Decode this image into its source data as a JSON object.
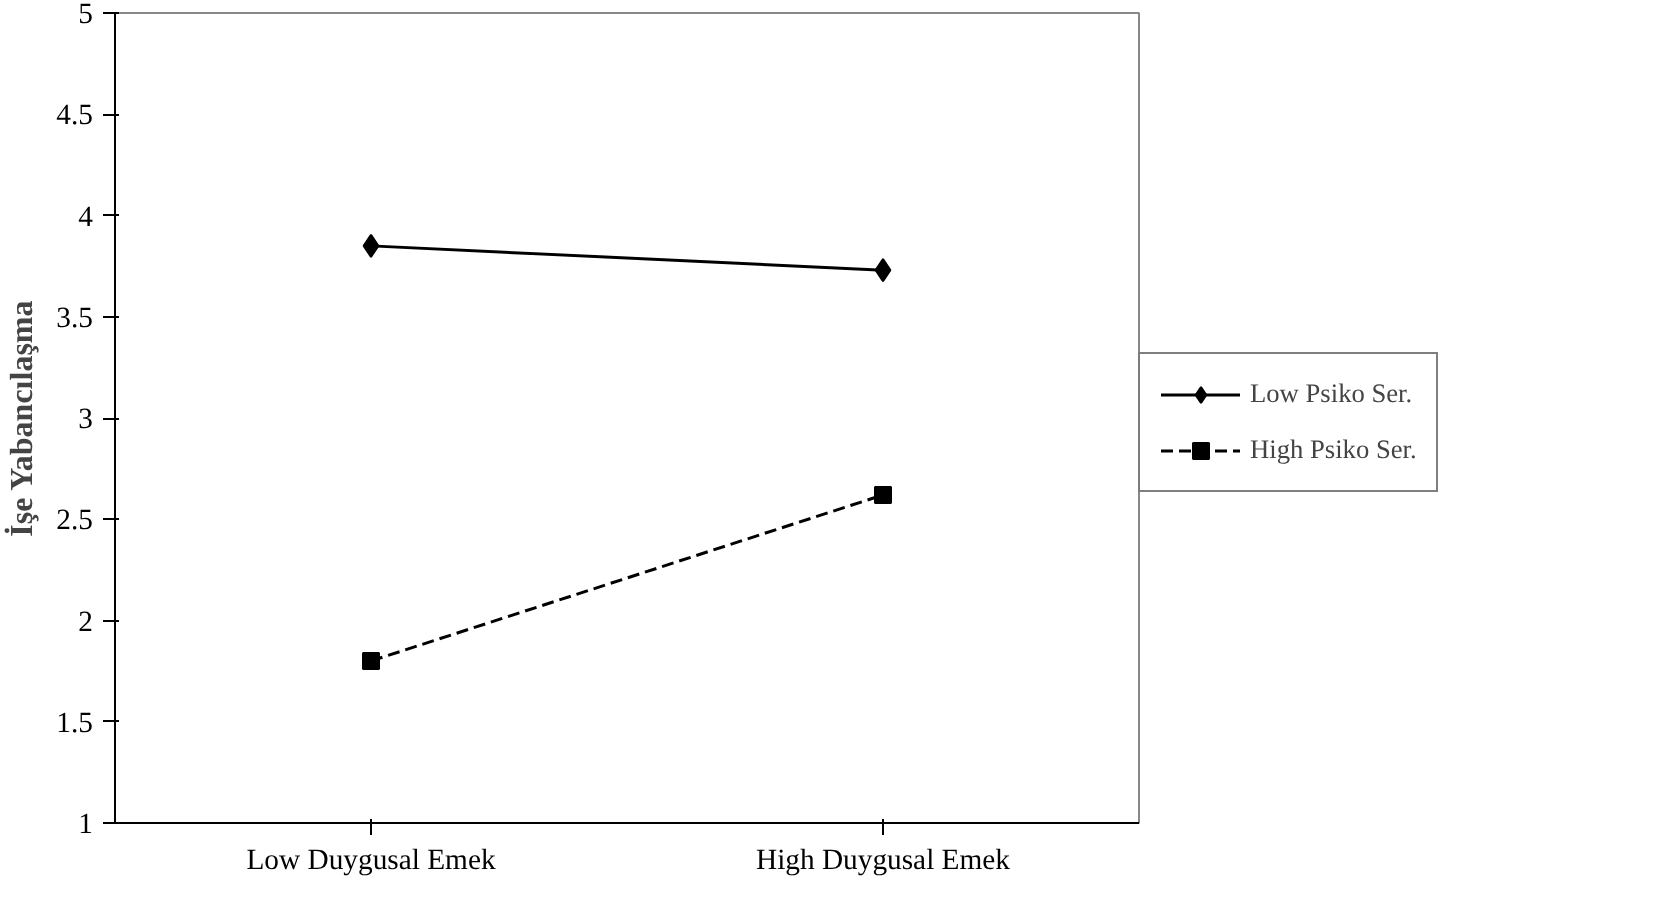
{
  "chart_data": {
    "type": "line",
    "ylabel": "İşe Yabancılaşma",
    "categories": [
      "Low Duygusal Emek",
      "High Duygusal Emek"
    ],
    "series": [
      {
        "name": "Low Psiko Ser.",
        "color": "#000000",
        "values": [
          3.85,
          3.73
        ],
        "marker": "diamond",
        "line_style": "solid"
      },
      {
        "name": "High Psiko Ser.",
        "color": "#000000",
        "values": [
          1.8,
          2.62
        ],
        "marker": "square",
        "line_style": "dashed"
      }
    ],
    "ylim": [
      1,
      5
    ],
    "yticks": [
      1,
      1.5,
      2,
      2.5,
      3,
      3.5,
      4,
      4.5,
      5
    ],
    "grid": false,
    "legend": "right"
  }
}
